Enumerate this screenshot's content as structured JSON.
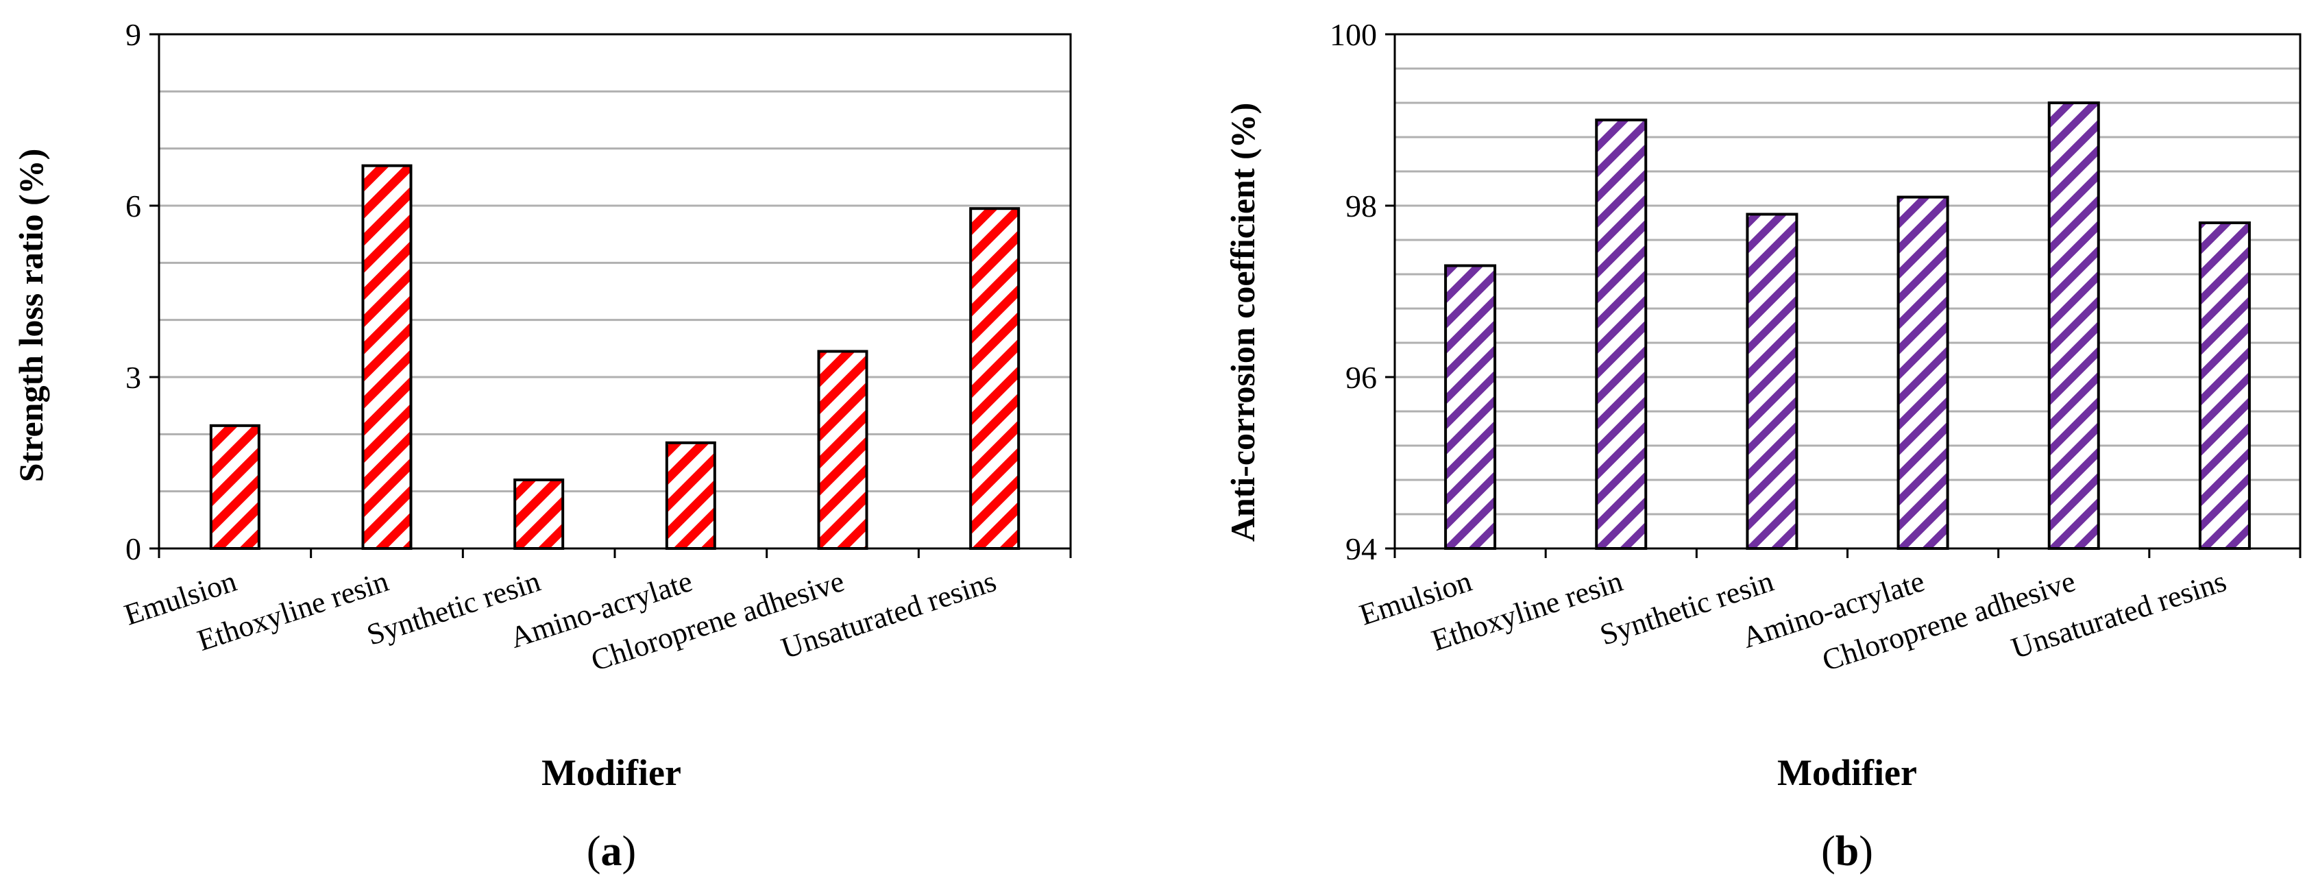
{
  "chart_data": [
    {
      "type": "bar",
      "panel_label": "a",
      "title": "",
      "xlabel": "Modifier",
      "ylabel": "Strength loss ratio (%)",
      "categories": [
        "Emulsion",
        "Ethoxyline resin",
        "Synthetic resin",
        "Amino-acrylate",
        "Chloroprene adhesive",
        "Unsaturated resins"
      ],
      "values": [
        2.15,
        6.7,
        1.2,
        1.85,
        3.45,
        5.95
      ],
      "ylim": [
        0,
        9
      ],
      "yticks": [
        0,
        3,
        6,
        9
      ],
      "minor_grid_step": 1,
      "grid": true,
      "bar_color": "#ff0000"
    },
    {
      "type": "bar",
      "panel_label": "b",
      "title": "",
      "xlabel": "Modifier",
      "ylabel": "Anti-corrosion coefficient (%)",
      "categories": [
        "Emulsion",
        "Ethoxyline resin",
        "Synthetic resin",
        "Amino-acrylate",
        "Chloroprene adhesive",
        "Unsaturated resins"
      ],
      "values": [
        97.3,
        99.0,
        97.9,
        98.1,
        99.2,
        97.8
      ],
      "ylim": [
        94,
        100
      ],
      "yticks": [
        94,
        96,
        98,
        100
      ],
      "minor_grid_step": 0.4,
      "grid": true,
      "bar_color": "#7030a0"
    }
  ]
}
